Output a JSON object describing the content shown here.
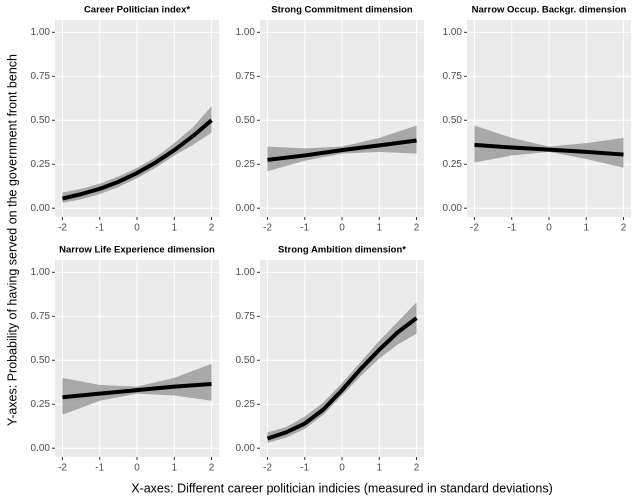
{
  "ylabel": "Y-axes: Probability of having served on the government front bench",
  "xlabel": "X-axes: Different career politician indicies (measured in standard deviations)",
  "chart_data": [
    {
      "type": "line",
      "title": "Career Politician index*",
      "x": [
        -2,
        -1.5,
        -1,
        -0.5,
        0,
        0.5,
        1,
        1.5,
        2
      ],
      "values": [
        0.055,
        0.08,
        0.11,
        0.15,
        0.2,
        0.26,
        0.33,
        0.41,
        0.5
      ],
      "lower": [
        0.03,
        0.05,
        0.08,
        0.12,
        0.17,
        0.23,
        0.3,
        0.36,
        0.43
      ],
      "upper": [
        0.09,
        0.11,
        0.14,
        0.18,
        0.23,
        0.29,
        0.37,
        0.46,
        0.58
      ],
      "xlim": [
        -2.2,
        2.2
      ],
      "ylim": [
        -0.05,
        1.07
      ],
      "xticks": [
        -2,
        -1,
        0,
        1,
        2
      ],
      "yticks": [
        {
          "value": 0,
          "label": "0.00"
        },
        {
          "value": 0.25,
          "label": "0.25"
        },
        {
          "value": 0.5,
          "label": "0.50"
        },
        {
          "value": 0.75,
          "label": "0.75"
        },
        {
          "value": 1,
          "label": "1.00"
        }
      ]
    },
    {
      "type": "line",
      "title": "Strong Commitment dimension",
      "x": [
        -2,
        -1,
        0,
        1,
        2
      ],
      "values": [
        0.275,
        0.3,
        0.33,
        0.357,
        0.385
      ],
      "lower": [
        0.21,
        0.27,
        0.31,
        0.32,
        0.31
      ],
      "upper": [
        0.35,
        0.34,
        0.35,
        0.4,
        0.47
      ],
      "xlim": [
        -2.2,
        2.2
      ],
      "ylim": [
        -0.05,
        1.07
      ],
      "xticks": [
        -2,
        -1,
        0,
        1,
        2
      ],
      "yticks": [
        {
          "value": 0,
          "label": "0.00"
        },
        {
          "value": 0.25,
          "label": "0.25"
        },
        {
          "value": 0.5,
          "label": "0.50"
        },
        {
          "value": 0.75,
          "label": "0.75"
        },
        {
          "value": 1,
          "label": "1.00"
        }
      ]
    },
    {
      "type": "line",
      "title": "Narrow Occup. Backgr. dimension",
      "x": [
        -2,
        -1,
        0,
        1,
        2
      ],
      "values": [
        0.36,
        0.345,
        0.333,
        0.32,
        0.305
      ],
      "lower": [
        0.26,
        0.3,
        0.32,
        0.28,
        0.23
      ],
      "upper": [
        0.47,
        0.4,
        0.35,
        0.37,
        0.4
      ],
      "xlim": [
        -2.2,
        2.2
      ],
      "ylim": [
        -0.05,
        1.07
      ],
      "xticks": [
        -2,
        -1,
        0,
        1,
        2
      ],
      "yticks": [
        {
          "value": 0,
          "label": "0.00"
        },
        {
          "value": 0.25,
          "label": "0.25"
        },
        {
          "value": 0.5,
          "label": "0.50"
        },
        {
          "value": 0.75,
          "label": "0.75"
        },
        {
          "value": 1,
          "label": "1.00"
        }
      ]
    },
    {
      "type": "line",
      "title": "Narrow Life Experience dimension",
      "x": [
        -2,
        -1,
        0,
        1,
        2
      ],
      "values": [
        0.29,
        0.31,
        0.33,
        0.35,
        0.365
      ],
      "lower": [
        0.19,
        0.27,
        0.31,
        0.3,
        0.27
      ],
      "upper": [
        0.4,
        0.36,
        0.35,
        0.4,
        0.48
      ],
      "xlim": [
        -2.2,
        2.2
      ],
      "ylim": [
        -0.05,
        1.07
      ],
      "xticks": [
        -2,
        -1,
        0,
        1,
        2
      ],
      "yticks": [
        {
          "value": 0,
          "label": "0.00"
        },
        {
          "value": 0.25,
          "label": "0.25"
        },
        {
          "value": 0.5,
          "label": "0.50"
        },
        {
          "value": 0.75,
          "label": "0.75"
        },
        {
          "value": 1,
          "label": "1.00"
        }
      ]
    },
    {
      "type": "line",
      "title": "Strong Ambition dimension*",
      "x": [
        -2,
        -1.5,
        -1,
        -0.5,
        0,
        0.5,
        1,
        1.5,
        2
      ],
      "values": [
        0.055,
        0.09,
        0.14,
        0.22,
        0.33,
        0.45,
        0.56,
        0.66,
        0.74
      ],
      "lower": [
        0.03,
        0.06,
        0.11,
        0.19,
        0.3,
        0.41,
        0.51,
        0.59,
        0.65
      ],
      "upper": [
        0.09,
        0.12,
        0.18,
        0.26,
        0.37,
        0.49,
        0.61,
        0.72,
        0.83
      ],
      "xlim": [
        -2.2,
        2.2
      ],
      "ylim": [
        -0.05,
        1.07
      ],
      "xticks": [
        -2,
        -1,
        0,
        1,
        2
      ],
      "yticks": [
        {
          "value": 0,
          "label": "0.00"
        },
        {
          "value": 0.25,
          "label": "0.25"
        },
        {
          "value": 0.5,
          "label": "0.50"
        },
        {
          "value": 0.75,
          "label": "0.75"
        },
        {
          "value": 1,
          "label": "1.00"
        }
      ]
    }
  ]
}
